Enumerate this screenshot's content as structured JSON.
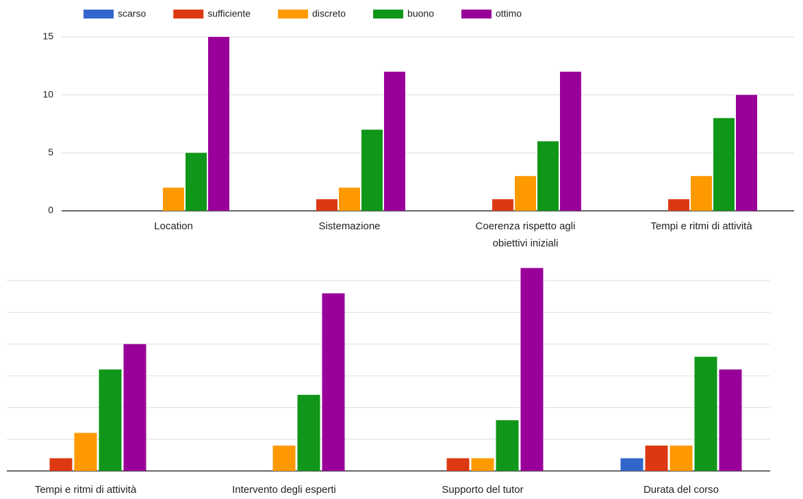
{
  "chart_data": [
    {
      "type": "bar",
      "categories": [
        "Location",
        "Sistemazione",
        "Coerenza rispetto agli obiettivi iniziali",
        "Tempi e ritmi di attività"
      ],
      "series": [
        {
          "name": "scarso",
          "color": "#3366cc",
          "values": [
            0,
            0,
            0,
            0
          ]
        },
        {
          "name": "sufficiente",
          "color": "#dc3912",
          "values": [
            0,
            1,
            1,
            1
          ]
        },
        {
          "name": "discreto",
          "color": "#ff9900",
          "values": [
            2,
            2,
            3,
            3
          ]
        },
        {
          "name": "buono",
          "color": "#109618",
          "values": [
            5,
            7,
            6,
            8
          ]
        },
        {
          "name": "ottimo",
          "color": "#990099",
          "values": [
            15,
            12,
            12,
            10
          ]
        }
      ],
      "ylim": [
        0,
        16
      ],
      "yticks": [
        0,
        5,
        10,
        15
      ],
      "grid": true,
      "legend": "top"
    },
    {
      "type": "bar",
      "categories": [
        "Tempi e ritmi di attività",
        "Intervento degli esperti",
        "Supporto del tutor",
        "Durata del corso"
      ],
      "series": [
        {
          "color": "#3366cc",
          "values": [
            0,
            0,
            0,
            1
          ]
        },
        {
          "color": "#dc3912",
          "values": [
            1,
            0,
            1,
            2
          ]
        },
        {
          "color": "#ff9900",
          "values": [
            3,
            2,
            1,
            2
          ]
        },
        {
          "color": "#109618",
          "values": [
            8,
            6,
            4,
            9
          ]
        },
        {
          "color": "#990099",
          "values": [
            10,
            14,
            16,
            8
          ]
        }
      ],
      "ylim": [
        0,
        16
      ],
      "yticks": [
        0,
        2.5,
        5,
        7.5,
        10,
        12.5,
        15
      ],
      "grid": true
    }
  ]
}
